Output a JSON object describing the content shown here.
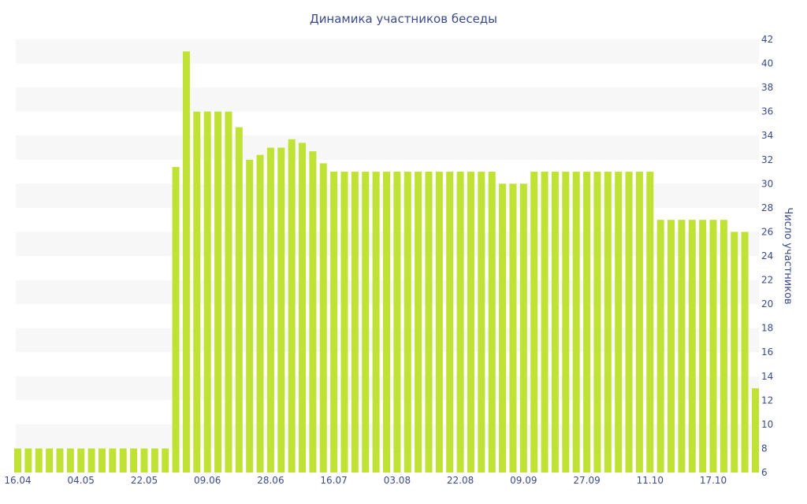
{
  "chart_data": {
    "type": "bar",
    "title": "Динамика участников беседы",
    "xlabel": "",
    "ylabel": "Число участников",
    "ylim": [
      6,
      42
    ],
    "yticks": [
      6,
      8,
      10,
      12,
      14,
      16,
      18,
      20,
      22,
      24,
      26,
      28,
      30,
      32,
      34,
      36,
      38,
      40,
      42
    ],
    "y_axis_side": "right",
    "x_tick_labels": [
      "16.04",
      "04.05",
      "22.05",
      "09.06",
      "28.06",
      "16.07",
      "03.08",
      "22.08",
      "09.09",
      "27.09",
      "11.10",
      "17.10"
    ],
    "x_tick_positions": [
      0,
      6,
      12,
      18,
      24,
      30,
      36,
      42,
      48,
      54,
      60,
      66
    ],
    "grid": "alternating horizontal bands",
    "colors": {
      "bar": "#bfe235",
      "text": "#3b4a8c",
      "band": "#f7f7f7"
    },
    "values": [
      8,
      8,
      8,
      8,
      8,
      8,
      8,
      8,
      8,
      8,
      8,
      8,
      8,
      8,
      8,
      31.4,
      41,
      36,
      36,
      36,
      36,
      34.7,
      32,
      32.4,
      33,
      33,
      33.7,
      33.4,
      32.7,
      31.7,
      31,
      31,
      31,
      31,
      31,
      31,
      31,
      31,
      31,
      31,
      31,
      31,
      31,
      31,
      31,
      31,
      30,
      30,
      30,
      31,
      31,
      31,
      31,
      31,
      31,
      31,
      31,
      31,
      31,
      31,
      31,
      27,
      27,
      27,
      27,
      27,
      27,
      27,
      26,
      26,
      13
    ]
  }
}
